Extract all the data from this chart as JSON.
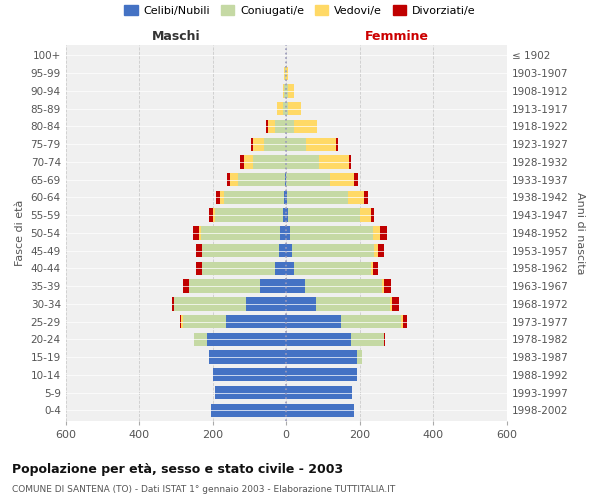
{
  "age_groups": [
    "0-4",
    "5-9",
    "10-14",
    "15-19",
    "20-24",
    "25-29",
    "30-34",
    "35-39",
    "40-44",
    "45-49",
    "50-54",
    "55-59",
    "60-64",
    "65-69",
    "70-74",
    "75-79",
    "80-84",
    "85-89",
    "90-94",
    "95-99",
    "100+"
  ],
  "birth_years": [
    "1998-2002",
    "1993-1997",
    "1988-1992",
    "1983-1987",
    "1978-1982",
    "1973-1977",
    "1968-1972",
    "1963-1967",
    "1958-1962",
    "1953-1957",
    "1948-1952",
    "1943-1947",
    "1938-1942",
    "1933-1937",
    "1928-1932",
    "1923-1927",
    "1918-1922",
    "1913-1917",
    "1908-1912",
    "1903-1907",
    "≤ 1902"
  ],
  "males": {
    "celibe": [
      205,
      195,
      200,
      210,
      215,
      165,
      110,
      70,
      30,
      20,
      18,
      10,
      5,
      2,
      0,
      0,
      0,
      0,
      0,
      0,
      0
    ],
    "coniugato": [
      0,
      0,
      0,
      0,
      35,
      115,
      195,
      195,
      200,
      210,
      215,
      185,
      165,
      130,
      90,
      60,
      30,
      10,
      5,
      2,
      0
    ],
    "vedovo": [
      0,
      0,
      0,
      0,
      0,
      5,
      0,
      0,
      0,
      0,
      5,
      5,
      10,
      20,
      25,
      30,
      20,
      15,
      5,
      3,
      0
    ],
    "divorziato": [
      0,
      0,
      0,
      0,
      0,
      5,
      5,
      15,
      15,
      15,
      15,
      10,
      10,
      10,
      10,
      5,
      5,
      0,
      0,
      0,
      0
    ]
  },
  "females": {
    "nubile": [
      185,
      178,
      192,
      192,
      175,
      148,
      82,
      50,
      20,
      15,
      10,
      5,
      2,
      0,
      0,
      0,
      0,
      0,
      0,
      0,
      0
    ],
    "coniugata": [
      0,
      0,
      0,
      15,
      90,
      165,
      200,
      210,
      210,
      225,
      225,
      195,
      165,
      120,
      90,
      55,
      20,
      5,
      5,
      0,
      0
    ],
    "vedova": [
      0,
      0,
      0,
      0,
      0,
      5,
      5,
      5,
      5,
      10,
      20,
      30,
      45,
      65,
      80,
      80,
      65,
      35,
      15,
      5,
      0
    ],
    "divorziata": [
      0,
      0,
      0,
      0,
      5,
      10,
      20,
      20,
      15,
      15,
      20,
      10,
      10,
      10,
      5,
      5,
      0,
      0,
      0,
      0,
      0
    ]
  },
  "colors": {
    "celibe": "#4472C4",
    "coniugato": "#C5D9A4",
    "vedovo": "#FFD966",
    "divorziato": "#C00000"
  },
  "legend_labels": [
    "Celibi/Nubili",
    "Coniugati/e",
    "Vedovi/e",
    "Divorziati/e"
  ],
  "title": "Popolazione per età, sesso e stato civile - 2003",
  "subtitle": "COMUNE DI SANTENA (TO) - Dati ISTAT 1° gennaio 2003 - Elaborazione TUTTITALIA.IT",
  "label_maschi": "Maschi",
  "label_femmine": "Femmine",
  "ylabel_left": "Fasce di età",
  "ylabel_right": "Anni di nascita",
  "xlim": 600,
  "bar_height": 0.75,
  "bg_color": "#ffffff",
  "plot_bg": "#f0f0f0",
  "grid_color": "#cccccc"
}
